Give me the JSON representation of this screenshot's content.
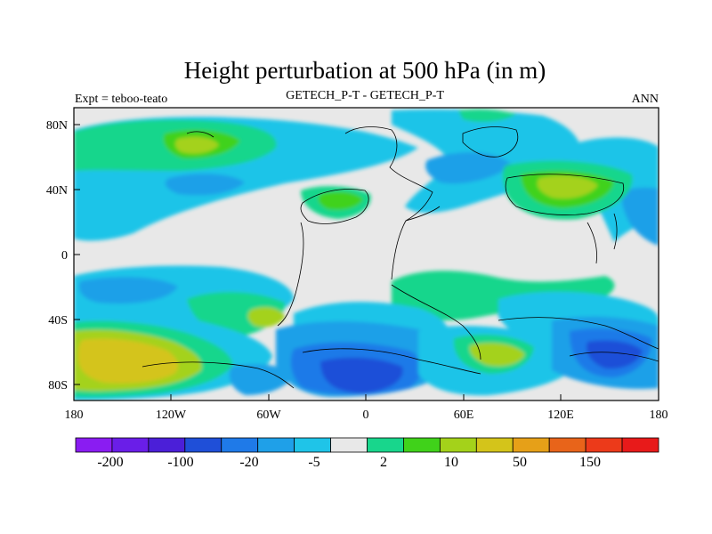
{
  "title": "Height perturbation at 500 hPa (in m)",
  "subtitle_left": "Expt = teboo-teato",
  "subtitle_center": "GETECH_P-T - GETECH_P-T",
  "subtitle_right": "ANN",
  "chart_data": {
    "type": "heatmap",
    "projection": "cylindrical equidistant",
    "x_ticks": [
      "180",
      "120W",
      "60W",
      "0",
      "60E",
      "120E",
      "180"
    ],
    "y_ticks": [
      "80N",
      "40N",
      "0",
      "40S",
      "80S"
    ],
    "colorbar": {
      "colors": [
        "#8a1cf2",
        "#6a1ee8",
        "#4b1fd8",
        "#1f4fd8",
        "#1f7ae8",
        "#1fa0e8",
        "#1fc4e8",
        "#e8e8e8",
        "#18d68c",
        "#40d21a",
        "#a4d21a",
        "#d4c41a",
        "#e6a018",
        "#e8641a",
        "#ec3a1a",
        "#e81a1a"
      ],
      "labels": [
        "-200",
        "-100",
        "-20",
        "-5",
        "2",
        "10",
        "50",
        "150"
      ]
    }
  }
}
